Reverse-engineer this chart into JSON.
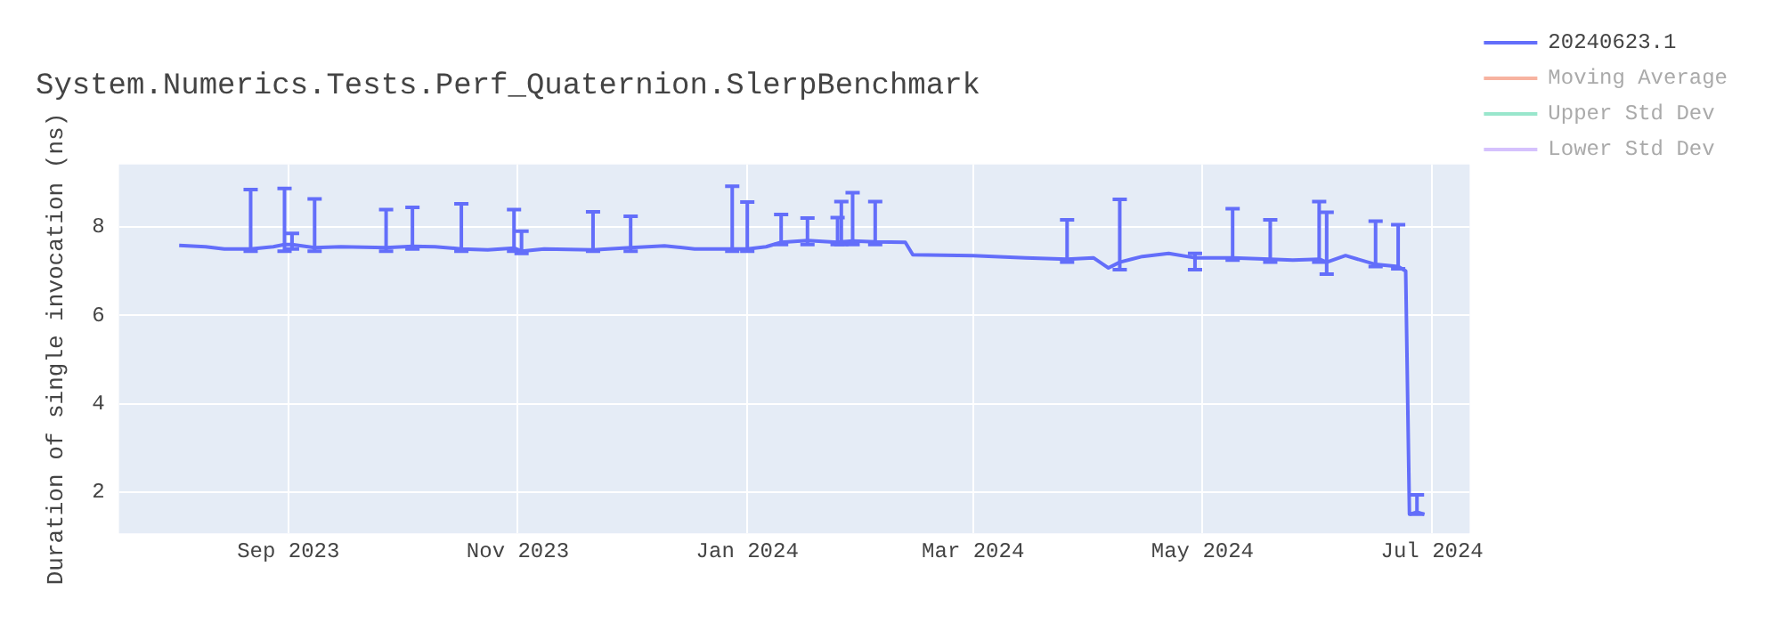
{
  "chart_data": {
    "type": "line",
    "title": "System.Numerics.Tests.Perf_Quaternion.SlerpBenchmark",
    "ylabel": "Duration of single invocation (ns)",
    "xlim": [
      "2023-07-18",
      "2024-07-11"
    ],
    "xticks": [
      {
        "value": "2023-09-01",
        "label": "Sep 2023"
      },
      {
        "value": "2023-11-01",
        "label": "Nov 2023"
      },
      {
        "value": "2024-01-01",
        "label": "Jan 2024"
      },
      {
        "value": "2024-03-01",
        "label": "Mar 2024"
      },
      {
        "value": "2024-05-01",
        "label": "May 2024"
      },
      {
        "value": "2024-07-01",
        "label": "Jul 2024"
      }
    ],
    "ylim": [
      1.07,
      9.41
    ],
    "yticks": [
      2,
      4,
      6,
      8
    ],
    "grid": true,
    "legend": "top right",
    "marker": "none",
    "line_style": "solid",
    "x": [
      "2023-08-03",
      "2023-08-10",
      "2023-08-15",
      "2023-08-22",
      "2023-08-28",
      "2023-08-31",
      "2023-09-02",
      "2023-09-08",
      "2023-09-15",
      "2023-09-27",
      "2023-10-04",
      "2023-10-10",
      "2023-10-17",
      "2023-10-24",
      "2023-10-31",
      "2023-11-02",
      "2023-11-08",
      "2023-11-21",
      "2023-12-01",
      "2023-12-10",
      "2023-12-18",
      "2023-12-28",
      "2024-01-01",
      "2024-01-06",
      "2024-01-10",
      "2024-01-17",
      "2024-01-25",
      "2024-01-26",
      "2024-01-29",
      "2024-02-04",
      "2024-02-12",
      "2024-02-14",
      "2024-03-01",
      "2024-03-15",
      "2024-03-26",
      "2024-04-02",
      "2024-04-06",
      "2024-04-09",
      "2024-04-15",
      "2024-04-22",
      "2024-04-29",
      "2024-05-09",
      "2024-05-19",
      "2024-05-25",
      "2024-06-01",
      "2024-06-03",
      "2024-06-08",
      "2024-06-16",
      "2024-06-22",
      "2024-06-24",
      "2024-06-25",
      "2024-06-27",
      "2024-06-29"
    ],
    "series": [
      {
        "name": "20240623.1",
        "color": "#636efa",
        "values": [
          7.58,
          7.55,
          7.5,
          7.5,
          7.55,
          7.6,
          7.6,
          7.53,
          7.55,
          7.53,
          7.56,
          7.55,
          7.5,
          7.48,
          7.52,
          7.45,
          7.5,
          7.48,
          7.53,
          7.57,
          7.5,
          7.5,
          7.5,
          7.55,
          7.65,
          7.69,
          7.65,
          7.66,
          7.68,
          7.66,
          7.65,
          7.37,
          7.35,
          7.3,
          7.27,
          7.3,
          7.07,
          7.2,
          7.33,
          7.4,
          7.3,
          7.3,
          7.27,
          7.25,
          7.27,
          7.2,
          7.35,
          7.15,
          7.1,
          7.0,
          1.5,
          1.55,
          1.5
        ],
        "errors": [
          null,
          null,
          null,
          [
            7.45,
            8.84
          ],
          null,
          [
            7.45,
            8.87
          ],
          [
            7.5,
            7.85
          ],
          [
            7.45,
            8.63
          ],
          null,
          [
            7.45,
            8.39
          ],
          [
            7.5,
            8.44
          ],
          null,
          [
            7.45,
            8.52
          ],
          null,
          [
            7.45,
            8.39
          ],
          [
            7.4,
            7.9
          ],
          null,
          [
            7.45,
            8.34
          ],
          [
            7.45,
            8.24
          ],
          null,
          null,
          [
            7.45,
            8.92
          ],
          [
            7.45,
            8.56
          ],
          null,
          [
            7.6,
            8.28
          ],
          [
            7.6,
            8.2
          ],
          [
            7.6,
            8.21
          ],
          [
            7.6,
            8.57
          ],
          [
            7.6,
            8.77
          ],
          [
            7.6,
            8.57
          ],
          null,
          null,
          null,
          null,
          [
            7.2,
            8.16
          ],
          null,
          null,
          [
            7.03,
            8.62
          ],
          null,
          null,
          [
            7.03,
            7.4
          ],
          [
            7.25,
            8.41
          ],
          [
            7.2,
            8.16
          ],
          null,
          [
            7.2,
            8.57
          ],
          [
            6.93,
            8.33
          ],
          null,
          [
            7.1,
            8.13
          ],
          [
            7.05,
            8.05
          ],
          null,
          null,
          [
            1.5,
            1.94
          ],
          null
        ]
      },
      {
        "name": "Moving Average",
        "color": "#f7b3a0",
        "values": [
          null,
          null,
          null,
          null,
          null,
          null,
          null,
          null,
          null,
          null,
          null,
          null,
          null,
          null,
          null,
          null,
          null,
          null,
          null,
          null,
          null,
          null,
          null,
          null,
          null,
          null,
          null,
          null,
          null,
          null,
          null,
          null,
          null,
          null,
          null,
          null,
          null,
          null,
          null,
          null,
          null,
          null,
          null,
          null,
          null,
          null,
          null,
          null,
          null,
          null,
          null,
          null,
          null
        ]
      },
      {
        "name": "Upper Std Dev",
        "color": "#99e6cc",
        "values": [
          null,
          null,
          null,
          null,
          null,
          null,
          null,
          null,
          null,
          null,
          null,
          null,
          null,
          null,
          null,
          null,
          null,
          null,
          null,
          null,
          null,
          null,
          null,
          null,
          null,
          null,
          null,
          null,
          null,
          null,
          null,
          null,
          null,
          null,
          null,
          null,
          null,
          null,
          null,
          null,
          null,
          null,
          null,
          null,
          null,
          null,
          null,
          null,
          null,
          null,
          null,
          null,
          null
        ]
      },
      {
        "name": "Lower Std Dev",
        "color": "#d5c1fd",
        "values": [
          null,
          null,
          null,
          null,
          null,
          null,
          null,
          null,
          null,
          null,
          null,
          null,
          null,
          null,
          null,
          null,
          null,
          null,
          null,
          null,
          null,
          null,
          null,
          null,
          null,
          null,
          null,
          null,
          null,
          null,
          null,
          null,
          null,
          null,
          null,
          null,
          null,
          null,
          null,
          null,
          null,
          null,
          null,
          null,
          null,
          null,
          null,
          null,
          null,
          null,
          null,
          null,
          null
        ]
      }
    ]
  }
}
